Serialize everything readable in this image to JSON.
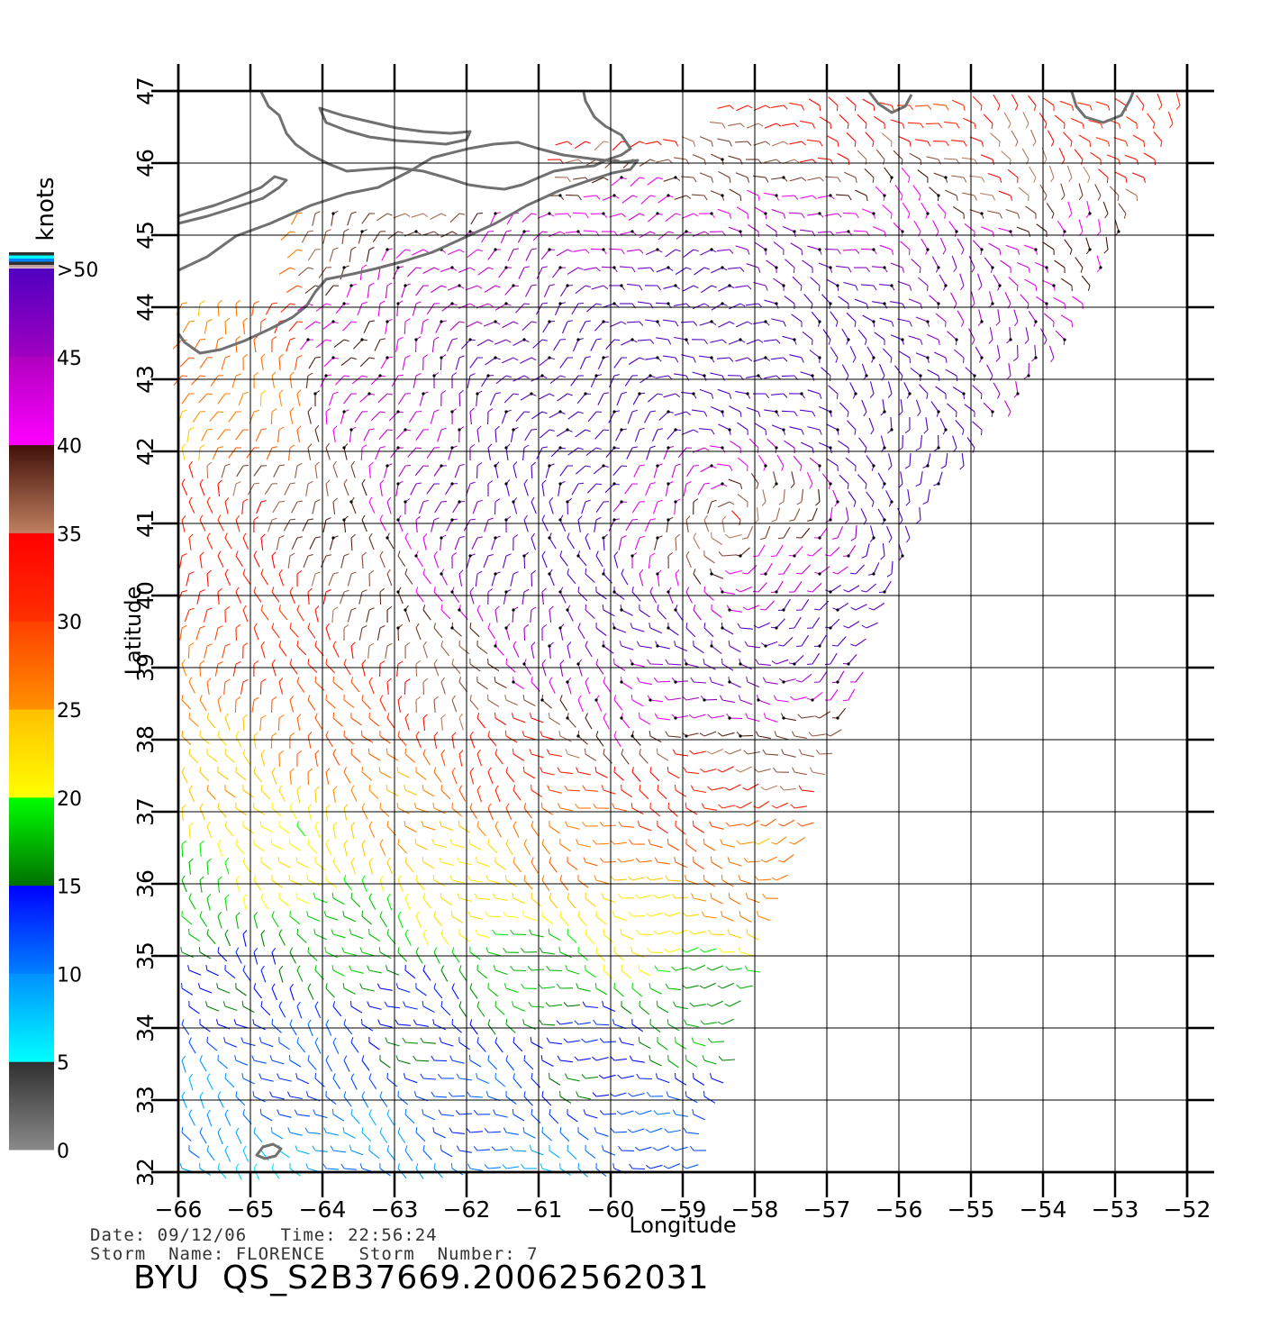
{
  "map": {
    "xaxis_label": "Longitude",
    "yaxis_label": "Latitude",
    "lon_range": [
      -66,
      -52
    ],
    "lat_range": [
      32,
      47
    ],
    "lon_ticks": [
      -66,
      -65,
      -64,
      -63,
      -62,
      -61,
      -60,
      -59,
      -58,
      -57,
      -56,
      -55,
      -54,
      -53,
      -52
    ],
    "lat_ticks": [
      32,
      33,
      34,
      35,
      36,
      37,
      38,
      39,
      40,
      41,
      42,
      43,
      44,
      45,
      46,
      47
    ],
    "lon_tick_labels": [
      "−66",
      "−65",
      "−64",
      "−63",
      "−62",
      "−61",
      "−60",
      "−59",
      "−58",
      "−57",
      "−56",
      "−55",
      "−54",
      "−53",
      "−52"
    ],
    "lat_tick_labels": [
      "32",
      "33",
      "34",
      "35",
      "36",
      "37",
      "38",
      "39",
      "40",
      "41",
      "42",
      "43",
      "44",
      "45",
      "46",
      "47"
    ],
    "grid": true,
    "swath_east_edge": [
      [
        -58.9,
        32.0
      ],
      [
        -58.0,
        35.0
      ],
      [
        -56.9,
        38.0
      ],
      [
        -56.1,
        40.0
      ],
      [
        -55.3,
        41.5
      ],
      [
        -54.0,
        43.0
      ],
      [
        -52.8,
        45.0
      ],
      [
        -51.8,
        47.0
      ]
    ],
    "eye_center": [
      -58.3,
      41.0
    ],
    "land_color": "#ffffff",
    "coast_color": "#707070"
  },
  "colorbar": {
    "title": "knots",
    "tick_labels": [
      "0",
      "5",
      "10",
      "15",
      "20",
      "25",
      "30",
      "35",
      "40",
      "45",
      ">50"
    ],
    "bands": [
      {
        "from": 0,
        "to": 5,
        "colors": [
          "#8a8a8a",
          "#303030"
        ]
      },
      {
        "from": 5,
        "to": 10,
        "colors": [
          "#00ffff",
          "#0090ff"
        ]
      },
      {
        "from": 10,
        "to": 15,
        "colors": [
          "#0080ff",
          "#0000ff"
        ]
      },
      {
        "from": 15,
        "to": 20,
        "colors": [
          "#007000",
          "#00ff00"
        ]
      },
      {
        "from": 20,
        "to": 25,
        "colors": [
          "#ffff00",
          "#ffc000"
        ]
      },
      {
        "from": 25,
        "to": 30,
        "colors": [
          "#ff9000",
          "#ff4000"
        ]
      },
      {
        "from": 30,
        "to": 35,
        "colors": [
          "#ff3000",
          "#ff0000"
        ]
      },
      {
        "from": 35,
        "to": 40,
        "colors": [
          "#c08060",
          "#401008"
        ]
      },
      {
        "from": 40,
        "to": 45,
        "colors": [
          "#ff00ff",
          "#b000c0"
        ]
      },
      {
        "from": 45,
        "to": 50,
        "colors": [
          "#a000c0",
          "#5000c0"
        ]
      }
    ]
  },
  "info": {
    "date_line": "Date: 09/12/06   Time: 22:56:24",
    "storm_line": "Storm  Name: FLORENCE   Storm  Number: 7",
    "file_id": "BYU  QS_S2B37669.20062562031"
  }
}
